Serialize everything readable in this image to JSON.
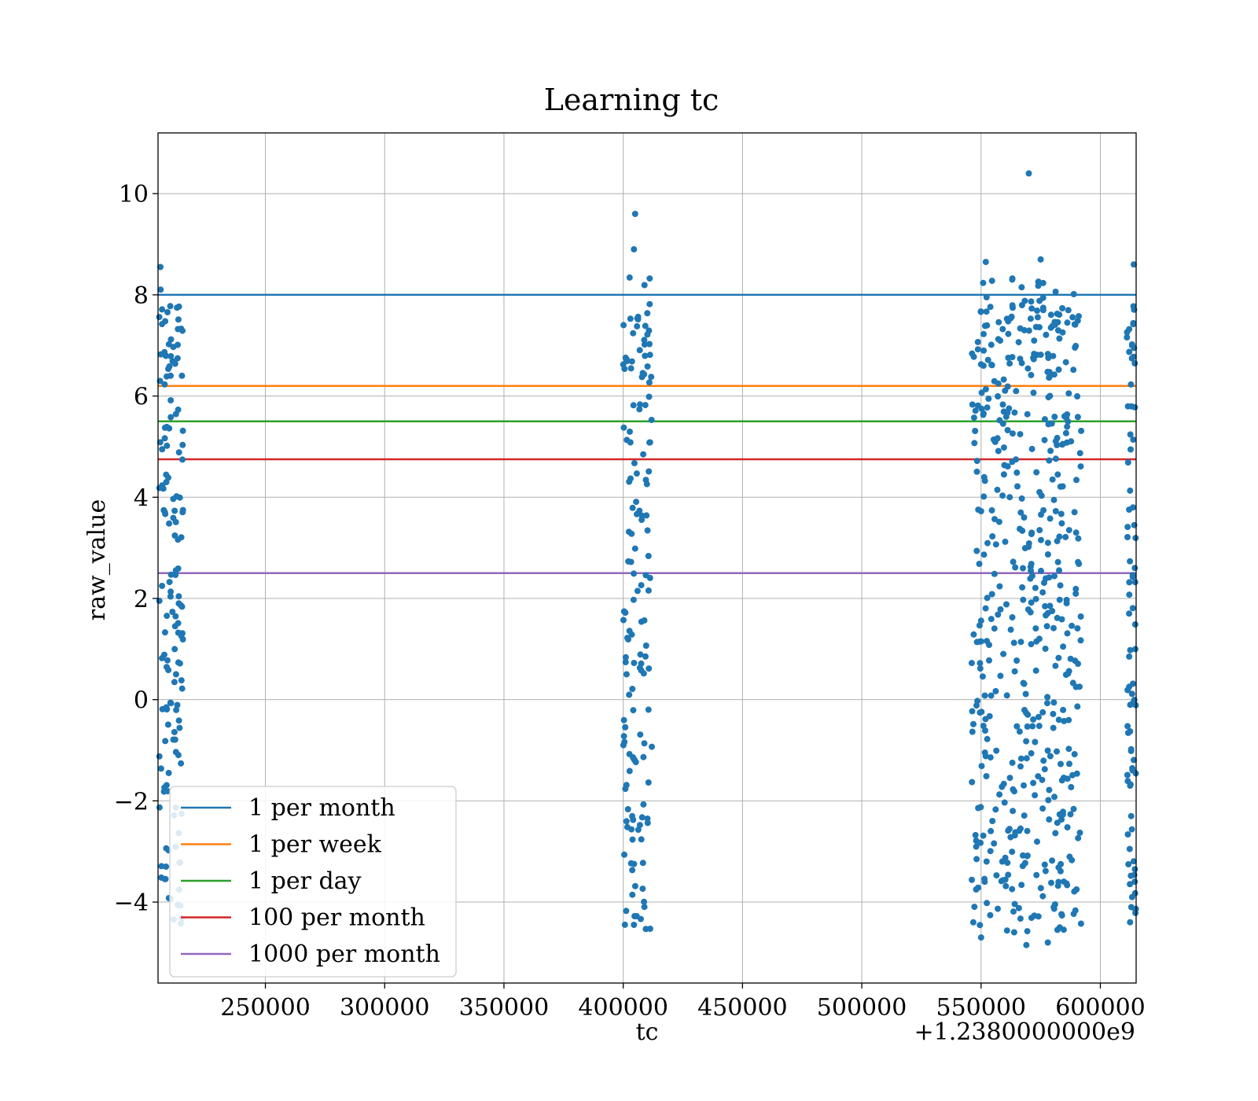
{
  "chart_data": {
    "type": "scatter",
    "title": "Learning tc",
    "xlabel": "tc",
    "ylabel": "raw_value",
    "x_offset_label": "+1.2380000000e9",
    "xlim": [
      205000,
      615000
    ],
    "ylim": [
      -5.6,
      11.2
    ],
    "x_ticks": [
      250000,
      300000,
      350000,
      400000,
      450000,
      500000,
      550000,
      600000
    ],
    "x_tick_labels": [
      "250000",
      "300000",
      "350000",
      "400000",
      "450000",
      "500000",
      "550000",
      "600000"
    ],
    "y_ticks": [
      -4,
      -2,
      0,
      2,
      4,
      6,
      8,
      10
    ],
    "y_tick_labels": [
      "−4",
      "−2",
      "0",
      "2",
      "4",
      "6",
      "8",
      "10"
    ],
    "grid": true,
    "legend_position": "lower-left",
    "point_color": "#1f77b4",
    "clusters": [
      {
        "x_min": 205500,
        "x_max": 215500,
        "count": 150
      },
      {
        "x_min": 400000,
        "x_max": 412000,
        "count": 150
      },
      {
        "x_min": 546000,
        "x_max": 592000,
        "count": 520
      },
      {
        "x_min": 611000,
        "x_max": 615000,
        "count": 80
      }
    ],
    "notable_points": [
      {
        "x": 570000,
        "y": 10.4
      },
      {
        "x": 405000,
        "y": 9.6
      },
      {
        "x": 404500,
        "y": 8.9
      },
      {
        "x": 552000,
        "y": 8.65
      },
      {
        "x": 575000,
        "y": 8.7
      },
      {
        "x": 206000,
        "y": 8.55
      },
      {
        "x": 614000,
        "y": 8.6
      },
      {
        "x": 404500,
        "y": -4.45
      },
      {
        "x": 569000,
        "y": -4.85
      },
      {
        "x": 578000,
        "y": -4.8
      },
      {
        "x": 550000,
        "y": -4.7
      },
      {
        "x": 613000,
        "y": -4.1
      }
    ],
    "series": [
      {
        "name": "1 per month",
        "type": "hline",
        "y": 8.0,
        "color": "#1f77b4"
      },
      {
        "name": "1 per week",
        "type": "hline",
        "y": 6.2,
        "color": "#ff7f0e"
      },
      {
        "name": "1 per day",
        "type": "hline",
        "y": 5.5,
        "color": "#2ca02c"
      },
      {
        "name": "100 per month",
        "type": "hline",
        "y": 4.75,
        "color": "#d62728"
      },
      {
        "name": "1000 per month",
        "type": "hline",
        "y": 2.5,
        "color": "#9467bd"
      }
    ]
  }
}
